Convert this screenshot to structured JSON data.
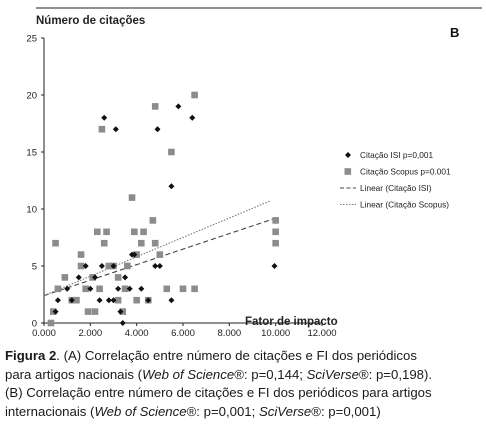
{
  "chart_data": {
    "type": "scatter",
    "panel_label": "B",
    "ylabel": "Número de citações",
    "xlabel": "Fator de impacto",
    "xlim": [
      0,
      12
    ],
    "ylim": [
      0,
      25
    ],
    "xticks": [
      "0.000",
      "2.000",
      "4.000",
      "6.000",
      "8.000",
      "10.000",
      "12.000"
    ],
    "yticks": [
      "0",
      "5",
      "10",
      "15",
      "20",
      "25"
    ],
    "grid": false,
    "legend_position": "right",
    "series": [
      {
        "name": "Citação ISI  p=0,001",
        "marker": "diamond",
        "color": "#111111",
        "points": [
          [
            0.5,
            1
          ],
          [
            0.6,
            2
          ],
          [
            1.0,
            3
          ],
          [
            1.2,
            2
          ],
          [
            1.5,
            4
          ],
          [
            1.8,
            5
          ],
          [
            2.0,
            3
          ],
          [
            2.2,
            4
          ],
          [
            2.4,
            2
          ],
          [
            2.5,
            5
          ],
          [
            2.6,
            18
          ],
          [
            2.8,
            2
          ],
          [
            3.0,
            5
          ],
          [
            3.0,
            2
          ],
          [
            3.1,
            17
          ],
          [
            3.2,
            3
          ],
          [
            3.3,
            1
          ],
          [
            3.4,
            0
          ],
          [
            3.5,
            4
          ],
          [
            3.7,
            3
          ],
          [
            3.8,
            6
          ],
          [
            3.9,
            6
          ],
          [
            4.2,
            3
          ],
          [
            4.5,
            2
          ],
          [
            4.8,
            5
          ],
          [
            4.9,
            17
          ],
          [
            5.0,
            5
          ],
          [
            5.5,
            2
          ],
          [
            5.5,
            12
          ],
          [
            5.8,
            19
          ],
          [
            6.4,
            18
          ],
          [
            9.95,
            5
          ]
        ]
      },
      {
        "name": "Citação Scopus  p=0.001",
        "marker": "square",
        "color": "#8c8c8c",
        "points": [
          [
            0.3,
            0
          ],
          [
            0.4,
            1
          ],
          [
            0.5,
            7
          ],
          [
            0.6,
            3
          ],
          [
            0.9,
            4
          ],
          [
            1.2,
            2
          ],
          [
            1.4,
            2
          ],
          [
            1.6,
            6
          ],
          [
            1.6,
            5
          ],
          [
            1.8,
            3
          ],
          [
            1.9,
            1
          ],
          [
            2.1,
            4
          ],
          [
            2.2,
            1
          ],
          [
            2.3,
            8
          ],
          [
            2.4,
            3
          ],
          [
            2.5,
            17
          ],
          [
            2.6,
            7
          ],
          [
            2.7,
            8
          ],
          [
            2.8,
            5
          ],
          [
            3.0,
            5
          ],
          [
            3.2,
            4
          ],
          [
            3.2,
            2
          ],
          [
            3.4,
            1
          ],
          [
            3.5,
            3
          ],
          [
            3.6,
            5
          ],
          [
            3.8,
            11
          ],
          [
            3.9,
            8
          ],
          [
            4.0,
            6
          ],
          [
            4.0,
            2
          ],
          [
            4.2,
            7
          ],
          [
            4.3,
            8
          ],
          [
            4.5,
            2
          ],
          [
            4.7,
            9
          ],
          [
            4.8,
            7
          ],
          [
            4.8,
            19
          ],
          [
            5.0,
            6
          ],
          [
            5.3,
            3
          ],
          [
            5.5,
            15
          ],
          [
            6.0,
            3
          ],
          [
            6.5,
            20
          ],
          [
            6.5,
            3
          ],
          [
            10.0,
            9
          ],
          [
            10.0,
            8
          ],
          [
            10.0,
            7
          ]
        ]
      },
      {
        "name": "Linear (Citação ISI)",
        "type": "line",
        "style": "dashed",
        "color": "#444444",
        "points": [
          [
            0,
            2.4
          ],
          [
            10.0,
            9.2
          ]
        ]
      },
      {
        "name": "Linear (Citação Scopus)",
        "type": "line",
        "style": "dotted",
        "color": "#777777",
        "points": [
          [
            0,
            2.4
          ],
          [
            9.75,
            10.7
          ]
        ]
      }
    ]
  },
  "caption": {
    "fig_label": "Figura 2",
    "line1": ". (A) Correlação entre número de citações e FI dos periódicos",
    "line2_a": "para artigos nacionais (",
    "line2_wos": "Web of Science",
    "line2_b": "®: p=0,144; ",
    "line2_sv": "SciVerse",
    "line2_c": "®: p=0,198).",
    "line3": "(B) Correlação entre número de citações e FI dos periódicos para artigos",
    "line4_a": "internacionais (",
    "line4_wos": "Web of Science",
    "line4_b": "®: p=0,001; ",
    "line4_sv": "SciVerse",
    "line4_c": "®: p=0,001)"
  }
}
